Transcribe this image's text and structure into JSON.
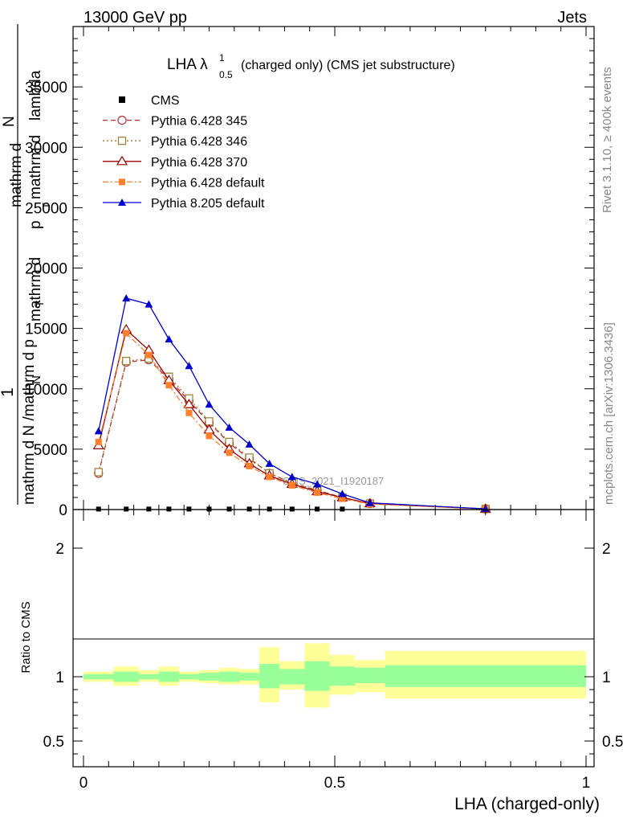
{
  "header": {
    "energy_label": "13000 GeV pp",
    "process_label": "Jets"
  },
  "side_labels": {
    "rivet": "Rivet 3.1.10, ≥ 400k events",
    "mcplots": "mcplots.cern.ch [arXiv:1306.3436]"
  },
  "chart_data": [
    {
      "type": "line",
      "title_main": "LHA λ",
      "title_sup": "1",
      "title_sub": "0.5",
      "title_rest": "(charged only) (CMS jet substructure)",
      "ylabel": "1 / mathrm d N / mathrm d p_T mathrm d^2N / mathrm d p_T mathrm d lambda",
      "ylabel_parts": {
        "one": "1",
        "numerator_1": "mathrm d",
        "numerator_2": "N",
        "numerator_3": "mathrm d",
        "numerator_4": "p",
        "numerator_5": "mathrm d",
        "numerator_6": "lambda",
        "denominator_1": "mathrm d N /mathrm d p",
        "denominator_2": "N",
        "sub_t1": "T",
        "sub_t2": "T"
      },
      "xlim": [
        0,
        1
      ],
      "ylim": [
        0,
        40000
      ],
      "y_ticks": [
        "5000",
        "10000",
        "15000",
        "20000",
        "25000",
        "30000",
        "35000"
      ],
      "y_zero": "0",
      "watermark": "CMS_2021_I1920187",
      "legend": [
        "CMS",
        "Pythia 6.428 345",
        "Pythia 6.428 346",
        "Pythia 6.428 370",
        "Pythia 6.428 default",
        "Pythia 8.205 default"
      ],
      "series": [
        {
          "name": "CMS",
          "color": "#000000",
          "marker": "square-filled",
          "x": [
            0.03,
            0.085,
            0.13,
            0.17,
            0.21,
            0.25,
            0.29,
            0.33,
            0.37,
            0.415,
            0.465,
            0.515
          ],
          "y": [
            40,
            40,
            40,
            40,
            40,
            40,
            40,
            40,
            40,
            40,
            40,
            40
          ]
        },
        {
          "name": "Pythia 6.428 345",
          "color": "#b03030",
          "marker": "circle-open",
          "dash": "6,4",
          "x": [
            0.03,
            0.085,
            0.13,
            0.17,
            0.21,
            0.25,
            0.29,
            0.33,
            0.37,
            0.415,
            0.465,
            0.515,
            0.57,
            0.8
          ],
          "y": [
            3000,
            12200,
            12400,
            10800,
            9000,
            7200,
            5500,
            4200,
            3000,
            2200,
            1600,
            1000,
            500,
            50
          ]
        },
        {
          "name": "Pythia 6.428 346",
          "color": "#9c7a30",
          "marker": "square-open",
          "dash": "2,3",
          "x": [
            0.03,
            0.085,
            0.13,
            0.17,
            0.21,
            0.25,
            0.29,
            0.33,
            0.37,
            0.415,
            0.465,
            0.515,
            0.57,
            0.8
          ],
          "y": [
            3100,
            12300,
            12500,
            11000,
            9200,
            7300,
            5600,
            4300,
            3000,
            2200,
            1600,
            1000,
            500,
            50
          ]
        },
        {
          "name": "Pythia 6.428 370",
          "color": "#990000",
          "marker": "triangle-open",
          "dash": "",
          "x": [
            0.03,
            0.085,
            0.13,
            0.17,
            0.21,
            0.25,
            0.29,
            0.33,
            0.37,
            0.415,
            0.465,
            0.515,
            0.57,
            0.8
          ],
          "y": [
            5300,
            14900,
            13200,
            10700,
            8700,
            6600,
            5000,
            3800,
            2800,
            2100,
            1500,
            1000,
            500,
            50
          ]
        },
        {
          "name": "Pythia 6.428 default",
          "color": "#ff7f2a",
          "marker": "square-filled",
          "dash": "7,3,2,3",
          "x": [
            0.03,
            0.085,
            0.13,
            0.17,
            0.21,
            0.25,
            0.29,
            0.33,
            0.37,
            0.415,
            0.465,
            0.515,
            0.57,
            0.8
          ],
          "y": [
            5600,
            14600,
            12800,
            10300,
            8000,
            6100,
            4700,
            3600,
            2700,
            2000,
            1400,
            900,
            450,
            40
          ]
        },
        {
          "name": "Pythia 8.205 default",
          "color": "#0000cc",
          "marker": "triangle-filled",
          "dash": "",
          "x": [
            0.03,
            0.085,
            0.13,
            0.17,
            0.21,
            0.25,
            0.29,
            0.33,
            0.37,
            0.415,
            0.465,
            0.515,
            0.57,
            0.8
          ],
          "y": [
            6500,
            17500,
            17000,
            14100,
            11900,
            8700,
            6800,
            5400,
            3800,
            2700,
            2100,
            1300,
            550,
            60
          ]
        }
      ]
    },
    {
      "type": "area",
      "ylabel": "Ratio to CMS",
      "xlabel": "LHA (charged-only)",
      "xlim": [
        0,
        1
      ],
      "ylim": [
        0.3,
        2.3
      ],
      "x_ticks": [
        "0",
        "0.5",
        "1"
      ],
      "y_ticks_left": [
        "0.5",
        "1",
        "2"
      ],
      "y_ticks_right": [
        "0.5",
        "1",
        "2"
      ],
      "bands": [
        {
          "x0": 0.0,
          "x1": 0.06,
          "stat_lo": 0.98,
          "stat_hi": 1.02,
          "tot_lo": 0.96,
          "tot_hi": 1.04
        },
        {
          "x0": 0.06,
          "x1": 0.11,
          "stat_lo": 0.96,
          "stat_hi": 1.04,
          "tot_lo": 0.93,
          "tot_hi": 1.08
        },
        {
          "x0": 0.11,
          "x1": 0.15,
          "stat_lo": 0.98,
          "stat_hi": 1.02,
          "tot_lo": 0.96,
          "tot_hi": 1.05
        },
        {
          "x0": 0.15,
          "x1": 0.19,
          "stat_lo": 0.96,
          "stat_hi": 1.04,
          "tot_lo": 0.93,
          "tot_hi": 1.08
        },
        {
          "x0": 0.19,
          "x1": 0.23,
          "stat_lo": 0.98,
          "stat_hi": 1.02,
          "tot_lo": 0.96,
          "tot_hi": 1.04
        },
        {
          "x0": 0.23,
          "x1": 0.27,
          "stat_lo": 0.97,
          "stat_hi": 1.03,
          "tot_lo": 0.95,
          "tot_hi": 1.05
        },
        {
          "x0": 0.27,
          "x1": 0.31,
          "stat_lo": 0.96,
          "stat_hi": 1.04,
          "tot_lo": 0.94,
          "tot_hi": 1.07
        },
        {
          "x0": 0.31,
          "x1": 0.35,
          "stat_lo": 0.97,
          "stat_hi": 1.03,
          "tot_lo": 0.94,
          "tot_hi": 1.06
        },
        {
          "x0": 0.35,
          "x1": 0.39,
          "stat_lo": 0.91,
          "stat_hi": 1.1,
          "tot_lo": 0.8,
          "tot_hi": 1.23
        },
        {
          "x0": 0.39,
          "x1": 0.44,
          "stat_lo": 0.94,
          "stat_hi": 1.06,
          "tot_lo": 0.9,
          "tot_hi": 1.12
        },
        {
          "x0": 0.44,
          "x1": 0.49,
          "stat_lo": 0.89,
          "stat_hi": 1.12,
          "tot_lo": 0.76,
          "tot_hi": 1.26
        },
        {
          "x0": 0.49,
          "x1": 0.54,
          "stat_lo": 0.93,
          "stat_hi": 1.08,
          "tot_lo": 0.86,
          "tot_hi": 1.17
        },
        {
          "x0": 0.54,
          "x1": 0.6,
          "stat_lo": 0.95,
          "stat_hi": 1.07,
          "tot_lo": 0.88,
          "tot_hi": 1.13
        },
        {
          "x0": 0.6,
          "x1": 1.0,
          "stat_lo": 0.92,
          "stat_hi": 1.09,
          "tot_lo": 0.83,
          "tot_hi": 1.2
        }
      ]
    }
  ]
}
